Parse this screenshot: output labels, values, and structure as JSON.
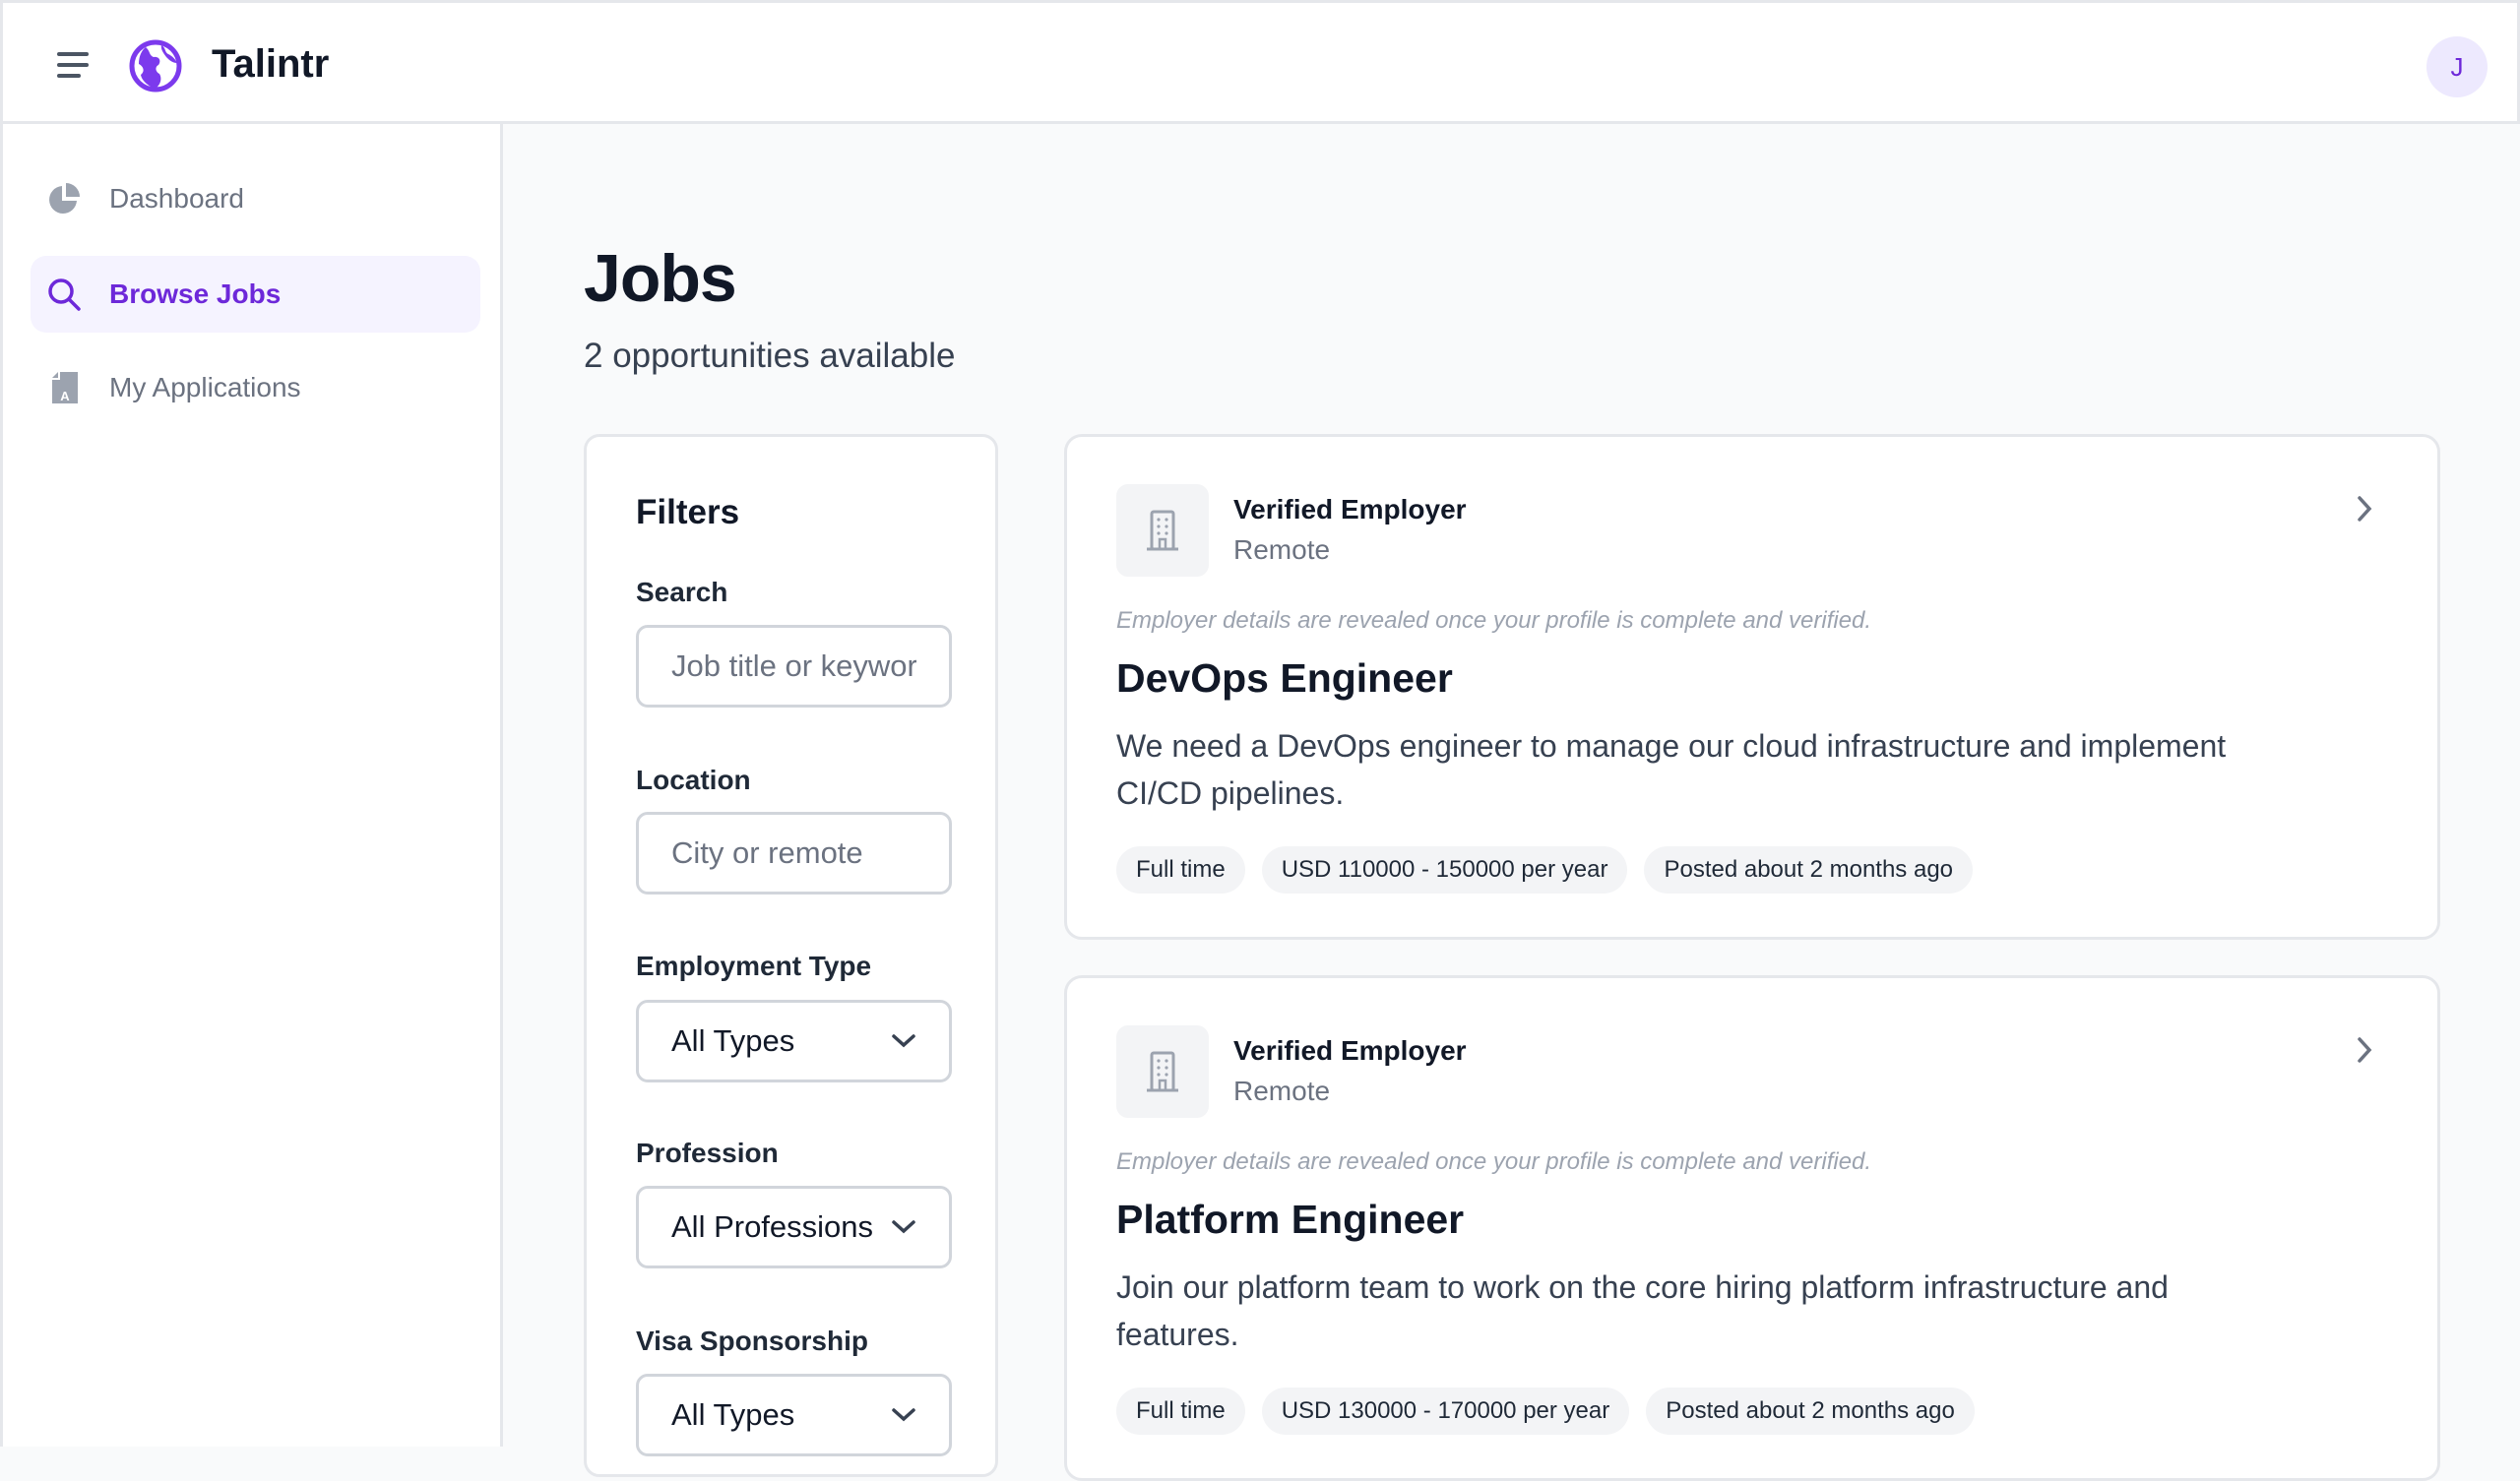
{
  "header": {
    "brand": "Talintr",
    "avatar_initial": "J",
    "accent": "#7c3aed"
  },
  "sidebar": {
    "items": [
      {
        "label": "Dashboard",
        "icon": "pie-chart-icon",
        "active": false
      },
      {
        "label": "Browse Jobs",
        "icon": "search-icon",
        "active": true
      },
      {
        "label": "My Applications",
        "icon": "document-icon",
        "active": false
      }
    ]
  },
  "main": {
    "title": "Jobs",
    "subtitle": "2 opportunities available"
  },
  "filters": {
    "title": "Filters",
    "search": {
      "label": "Search",
      "placeholder": "Job title or keywords",
      "value": ""
    },
    "location": {
      "label": "Location",
      "placeholder": "City or remote",
      "value": ""
    },
    "employment_type": {
      "label": "Employment Type",
      "value": "All Types"
    },
    "profession": {
      "label": "Profession",
      "value": "All Professions"
    },
    "visa": {
      "label": "Visa Sponsorship",
      "value": "All Types"
    }
  },
  "jobs": [
    {
      "employer": "Verified Employer",
      "location": "Remote",
      "note": "Employer details are revealed once your profile is complete and verified.",
      "title": "DevOps Engineer",
      "description": "We need a DevOps engineer to manage our cloud infrastructure and implement CI/CD pipelines.",
      "tags": [
        "Full time",
        "USD 110000 - 150000 per year",
        "Posted about 2 months ago"
      ]
    },
    {
      "employer": "Verified Employer",
      "location": "Remote",
      "note": "Employer details are revealed once your profile is complete and verified.",
      "title": "Platform Engineer",
      "description": "Join our platform team to work on the core hiring platform infrastructure and features.",
      "tags": [
        "Full time",
        "USD 130000 - 170000 per year",
        "Posted about 2 months ago"
      ]
    }
  ]
}
